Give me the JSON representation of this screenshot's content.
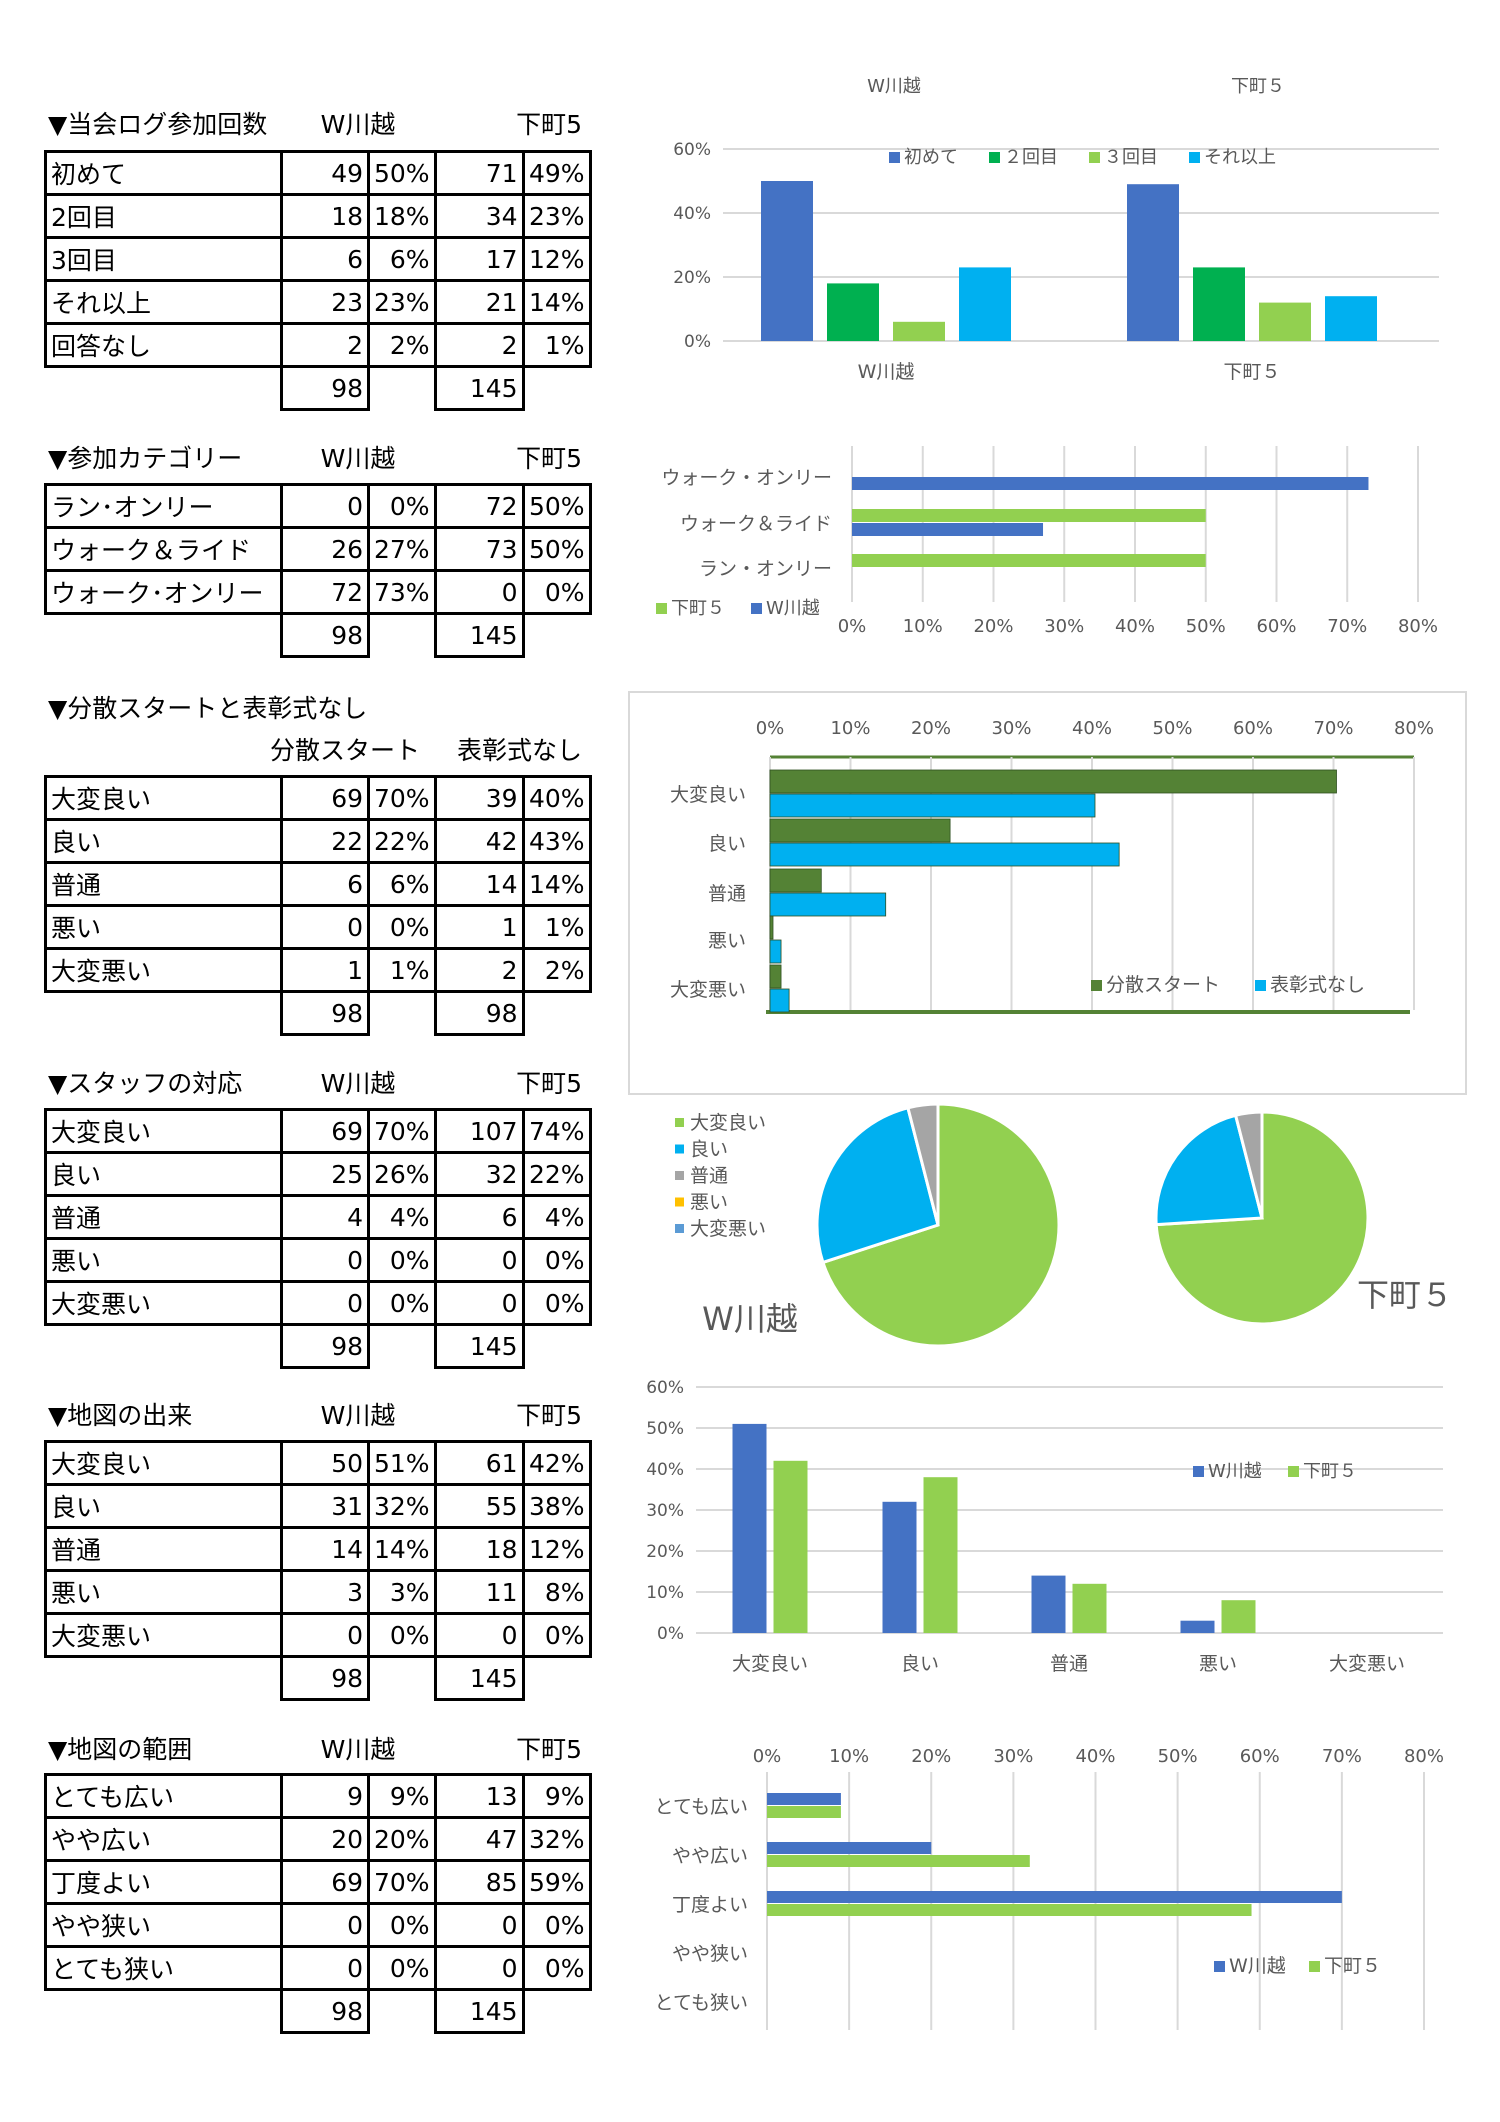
{
  "tables": [
    {
      "title": "▼当会ログ参加回数",
      "col1": "W川越",
      "col2": "下町5",
      "rows": [
        [
          "初めて",
          "49",
          "50%",
          "71",
          "49%"
        ],
        [
          "2回目",
          "18",
          "18%",
          "34",
          "23%"
        ],
        [
          "3回目",
          "6",
          "6%",
          "17",
          "12%"
        ],
        [
          "それ以上",
          "23",
          "23%",
          "21",
          "14%"
        ],
        [
          "回答なし",
          "2",
          "2%",
          "2",
          "1%"
        ]
      ],
      "total1": "98",
      "total2": "145"
    },
    {
      "title": "▼参加カテゴリー",
      "col1": "W川越",
      "col2": "下町5",
      "rows": [
        [
          "ラン･オンリー",
          "0",
          "0%",
          "72",
          "50%"
        ],
        [
          "ウォーク＆ライド",
          "26",
          "27%",
          "73",
          "50%"
        ],
        [
          "ウォーク･オンリー",
          "72",
          "73%",
          "0",
          "0%"
        ]
      ],
      "total1": "98",
      "total2": "145"
    },
    {
      "title": "▼分散スタートと表彰式なし",
      "col1": "分散スタート",
      "col2": "表彰式なし",
      "rows": [
        [
          "大変良い",
          "69",
          "70%",
          "39",
          "40%"
        ],
        [
          "良い",
          "22",
          "22%",
          "42",
          "43%"
        ],
        [
          "普通",
          "6",
          "6%",
          "14",
          "14%"
        ],
        [
          "悪い",
          "0",
          "0%",
          "1",
          "1%"
        ],
        [
          "大変悪い",
          "1",
          "1%",
          "2",
          "2%"
        ]
      ],
      "total1": "98",
      "total2": "98"
    },
    {
      "title": "▼スタッフの対応",
      "col1": "W川越",
      "col2": "下町5",
      "rows": [
        [
          "大変良い",
          "69",
          "70%",
          "107",
          "74%"
        ],
        [
          "良い",
          "25",
          "26%",
          "32",
          "22%"
        ],
        [
          "普通",
          "4",
          "4%",
          "6",
          "4%"
        ],
        [
          "悪い",
          "0",
          "0%",
          "0",
          "0%"
        ],
        [
          "大変悪い",
          "0",
          "0%",
          "0",
          "0%"
        ]
      ],
      "total1": "98",
      "total2": "145"
    },
    {
      "title": "▼地図の出来",
      "col1": "W川越",
      "col2": "下町5",
      "rows": [
        [
          "大変良い",
          "50",
          "51%",
          "61",
          "42%"
        ],
        [
          "良い",
          "31",
          "32%",
          "55",
          "38%"
        ],
        [
          "普通",
          "14",
          "14%",
          "18",
          "12%"
        ],
        [
          "悪い",
          "3",
          "3%",
          "11",
          "8%"
        ],
        [
          "大変悪い",
          "0",
          "0%",
          "0",
          "0%"
        ]
      ],
      "total1": "98",
      "total2": "145"
    },
    {
      "title": "▼地図の範囲",
      "col1": "W川越",
      "col2": "下町5",
      "rows": [
        [
          "とても広い",
          "9",
          "9%",
          "13",
          "9%"
        ],
        [
          "やや広い",
          "20",
          "20%",
          "47",
          "32%"
        ],
        [
          "丁度よい",
          "69",
          "70%",
          "85",
          "59%"
        ],
        [
          "やや狭い",
          "0",
          "0%",
          "0",
          "0%"
        ],
        [
          "とても狭い",
          "0",
          "0%",
          "0",
          "0%"
        ]
      ],
      "total1": "98",
      "total2": "145"
    }
  ],
  "chart_data": [
    {
      "type": "bar",
      "title": "",
      "top_labels": [
        "W川越",
        "下町５"
      ],
      "categories": [
        "W川越",
        "下町５"
      ],
      "series": [
        {
          "name": "初めて",
          "color": "#4472C4",
          "values": [
            50,
            49
          ]
        },
        {
          "name": "２回目",
          "color": "#00B050",
          "values": [
            18,
            23
          ]
        },
        {
          "name": "３回目",
          "color": "#92D050",
          "values": [
            6,
            12
          ]
        },
        {
          "name": "それ以上",
          "color": "#00B0F0",
          "values": [
            23,
            14
          ]
        }
      ],
      "ylim": [
        0,
        60
      ],
      "yticks": [
        "0%",
        "20%",
        "40%",
        "60%"
      ],
      "legend": "top"
    },
    {
      "type": "bar",
      "orientation": "horizontal",
      "categories": [
        "ウォーク・オンリー",
        "ウォーク＆ライド",
        "ラン・オンリー"
      ],
      "series": [
        {
          "name": "下町５",
          "color": "#92D050",
          "values": [
            0,
            50,
            50
          ]
        },
        {
          "name": "W川越",
          "color": "#4472C4",
          "values": [
            73,
            27,
            0
          ]
        }
      ],
      "xlim": [
        0,
        80
      ],
      "xticks": [
        "0%",
        "10%",
        "20%",
        "30%",
        "40%",
        "50%",
        "60%",
        "70%",
        "80%"
      ],
      "legend": "bottom-left"
    },
    {
      "type": "bar",
      "orientation": "horizontal",
      "style": "3d",
      "categories": [
        "大変良い",
        "良い",
        "普通",
        "悪い",
        "大変悪い"
      ],
      "series": [
        {
          "name": "分散スタート",
          "color": "#548235",
          "values": [
            70,
            22,
            6,
            0,
            1
          ]
        },
        {
          "name": "表彰式なし",
          "color": "#00B0F0",
          "values": [
            40,
            43,
            14,
            1,
            2
          ]
        }
      ],
      "xlim": [
        0,
        80
      ],
      "xticks": [
        "0%",
        "10%",
        "20%",
        "30%",
        "40%",
        "50%",
        "60%",
        "70%",
        "80%"
      ],
      "legend": "bottom-right"
    },
    {
      "type": "pie",
      "categories": [
        "大変良い",
        "良い",
        "普通",
        "悪い",
        "大変悪い"
      ],
      "colors": [
        "#92D050",
        "#00B0F0",
        "#A5A5A5",
        "#FFC000",
        "#5B9BD5"
      ],
      "pies": [
        {
          "name": "W川越",
          "values": [
            70,
            26,
            4,
            0,
            0
          ]
        },
        {
          "name": "下町５",
          "values": [
            74,
            22,
            4,
            0,
            0
          ]
        }
      ],
      "legend": "left"
    },
    {
      "type": "bar",
      "categories": [
        "大変良い",
        "良い",
        "普通",
        "悪い",
        "大変悪い"
      ],
      "series": [
        {
          "name": "W川越",
          "color": "#4472C4",
          "values": [
            51,
            32,
            14,
            3,
            0
          ]
        },
        {
          "name": "下町５",
          "color": "#92D050",
          "values": [
            42,
            38,
            12,
            8,
            0
          ]
        }
      ],
      "ylim": [
        0,
        60
      ],
      "yticks": [
        "0%",
        "10%",
        "20%",
        "30%",
        "40%",
        "50%",
        "60%"
      ],
      "legend": "right"
    },
    {
      "type": "bar",
      "orientation": "horizontal",
      "categories": [
        "とても広い",
        "やや広い",
        "丁度よい",
        "やや狭い",
        "とても狭い"
      ],
      "series": [
        {
          "name": "W川越",
          "color": "#4472C4",
          "values": [
            9,
            20,
            70,
            0,
            0
          ]
        },
        {
          "name": "下町５",
          "color": "#92D050",
          "values": [
            9,
            32,
            59,
            0,
            0
          ]
        }
      ],
      "xlim": [
        0,
        80
      ],
      "xticks": [
        "0%",
        "10%",
        "20%",
        "30%",
        "40%",
        "50%",
        "60%",
        "70%",
        "80%"
      ],
      "legend": "bottom-right"
    }
  ]
}
